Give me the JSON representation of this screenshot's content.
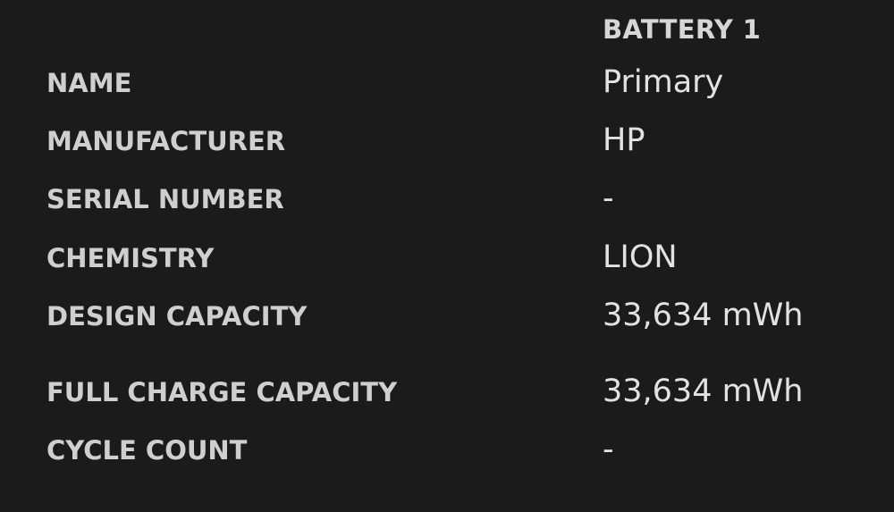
{
  "header": "BATTERY 1",
  "rows": [
    {
      "label": "NAME",
      "value": "Primary"
    },
    {
      "label": "MANUFACTURER",
      "value": "HP"
    },
    {
      "label": "SERIAL NUMBER",
      "value": "-"
    },
    {
      "label": "CHEMISTRY",
      "value": "LION"
    },
    {
      "label": "DESIGN CAPACITY",
      "value": "33,634 mWh"
    },
    {
      "label": "FULL CHARGE CAPACITY",
      "value": "33,634 mWh"
    },
    {
      "label": "CYCLE COUNT",
      "value": "-"
    }
  ]
}
